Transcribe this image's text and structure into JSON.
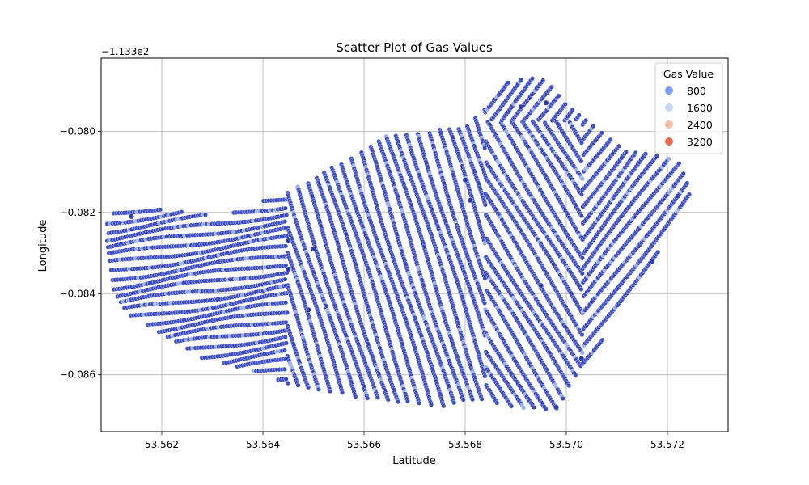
{
  "chart_data": {
    "type": "scatter",
    "title": "Scatter Plot of Gas Values",
    "xlabel": "Latitude",
    "ylabel": "Longitude",
    "offset_text": "−1.133e2",
    "xlim": [
      53.5608,
      53.5732
    ],
    "ylim": [
      -0.0874,
      -0.0782
    ],
    "x_ticks": [
      53.562,
      53.564,
      53.566,
      53.568,
      53.57,
      53.572
    ],
    "x_tick_labels": [
      "53.562",
      "53.564",
      "53.566",
      "53.568",
      "53.570",
      "53.572"
    ],
    "y_ticks": [
      -0.08,
      -0.082,
      -0.084,
      -0.086
    ],
    "y_tick_labels": [
      "−0.080",
      "−0.082",
      "−0.084",
      "−0.086"
    ],
    "grid": true,
    "legend": {
      "title": "Gas Value",
      "placement": "top-right",
      "entries": [
        {
          "label": "800",
          "color": "#7b9ff9"
        },
        {
          "label": "1600",
          "color": "#c5d7f3"
        },
        {
          "label": "2400",
          "color": "#f6bfa5"
        },
        {
          "label": "3200",
          "color": "#e26952"
        }
      ]
    },
    "colors": {
      "base": "#3f4fc0",
      "light": "#9aaee8"
    },
    "field_boundary": [
      [
        53.5609,
        -0.0821
      ],
      [
        53.5613,
        -0.0818
      ],
      [
        53.5618,
        -0.0819
      ],
      [
        53.5625,
        -0.082
      ],
      [
        53.5632,
        -0.0821
      ],
      [
        53.5638,
        -0.0818
      ],
      [
        53.5645,
        -0.0815
      ],
      [
        53.5652,
        -0.081
      ],
      [
        53.5658,
        -0.0806
      ],
      [
        53.5664,
        -0.0801
      ],
      [
        53.5672,
        -0.08
      ],
      [
        53.568,
        -0.0799
      ],
      [
        53.5684,
        -0.0794
      ],
      [
        53.5688,
        -0.0788
      ],
      [
        53.5692,
        -0.0787
      ],
      [
        53.5696,
        -0.0787
      ],
      [
        53.57,
        -0.0793
      ],
      [
        53.5705,
        -0.0798
      ],
      [
        53.5712,
        -0.0805
      ],
      [
        53.5719,
        -0.0806
      ],
      [
        53.5723,
        -0.0808
      ],
      [
        53.5725,
        -0.0817
      ],
      [
        53.572,
        -0.0826
      ],
      [
        53.5714,
        -0.0838
      ],
      [
        53.5708,
        -0.085
      ],
      [
        53.5702,
        -0.086
      ],
      [
        53.5698,
        -0.0869
      ],
      [
        53.569,
        -0.0868
      ],
      [
        53.5682,
        -0.0866
      ],
      [
        53.5675,
        -0.0868
      ],
      [
        53.5662,
        -0.0866
      ],
      [
        53.565,
        -0.0864
      ],
      [
        53.5642,
        -0.0861
      ],
      [
        53.5635,
        -0.0858
      ],
      [
        53.5628,
        -0.0856
      ],
      [
        53.562,
        -0.085
      ],
      [
        53.5613,
        -0.0845
      ],
      [
        53.561,
        -0.0838
      ],
      [
        53.5609,
        -0.0828
      ]
    ]
  }
}
